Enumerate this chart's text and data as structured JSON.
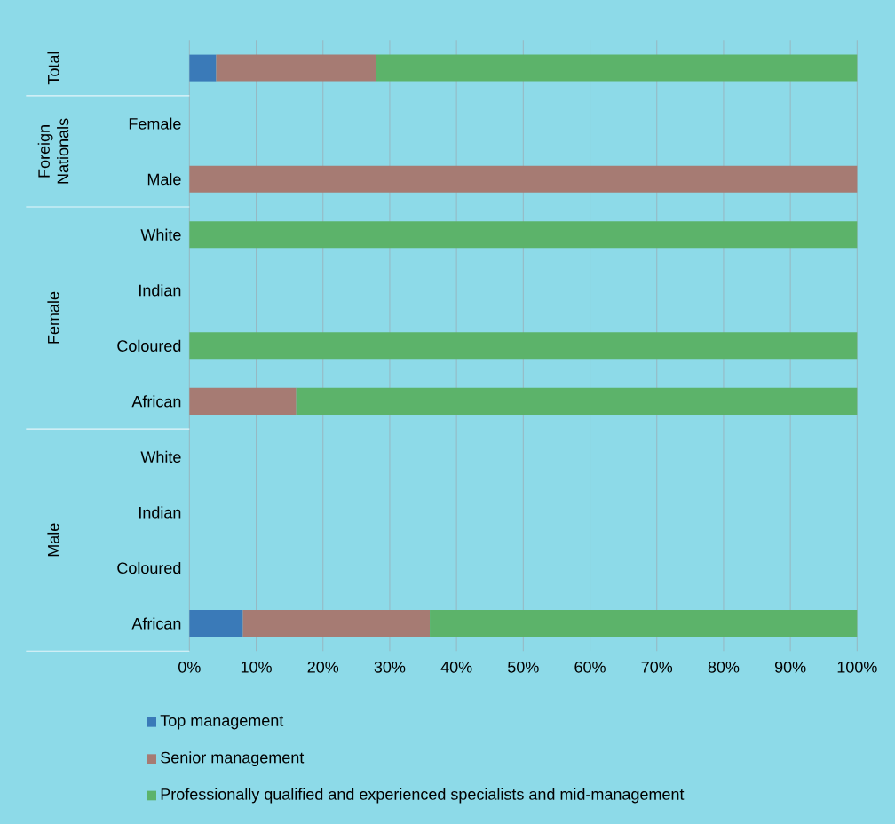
{
  "chart_data": {
    "type": "bar",
    "orientation": "horizontal",
    "stacked": true,
    "categories": [
      null,
      "Female",
      "Male",
      "White",
      "Indian",
      "Coloured",
      "African",
      "White",
      "Indian",
      "Coloured",
      "African"
    ],
    "series": [
      {
        "name": "Top management",
        "color": "#3a7ab8",
        "values": [
          4,
          null,
          null,
          null,
          null,
          null,
          null,
          null,
          null,
          null,
          8
        ]
      },
      {
        "name": "Senior management",
        "color": "#a67b73",
        "values": [
          24,
          null,
          100,
          null,
          null,
          null,
          16,
          null,
          null,
          null,
          28
        ]
      },
      {
        "name": "Professionally qualified and experienced specialists and mid-management",
        "color": "#5cb36a",
        "values": [
          72,
          null,
          null,
          100,
          null,
          100,
          84,
          null,
          null,
          null,
          64
        ]
      }
    ],
    "xlim": [
      0,
      100
    ],
    "xticks": [
      {
        "value": 0,
        "label": "0%"
      },
      {
        "value": 10,
        "label": "10%"
      },
      {
        "value": 20,
        "label": "20%"
      },
      {
        "value": 30,
        "label": "30%"
      },
      {
        "value": 40,
        "label": "40%"
      },
      {
        "value": 50,
        "label": "50%"
      },
      {
        "value": 60,
        "label": "60%"
      },
      {
        "value": 70,
        "label": "70%"
      },
      {
        "value": 80,
        "label": "80%"
      },
      {
        "value": 90,
        "label": "90%"
      },
      {
        "value": 100,
        "label": "100%"
      }
    ],
    "annotations": [
      "Total",
      "Foreign Nationals",
      "Female",
      "Male"
    ],
    "grid": "x",
    "legend": "bottom"
  }
}
